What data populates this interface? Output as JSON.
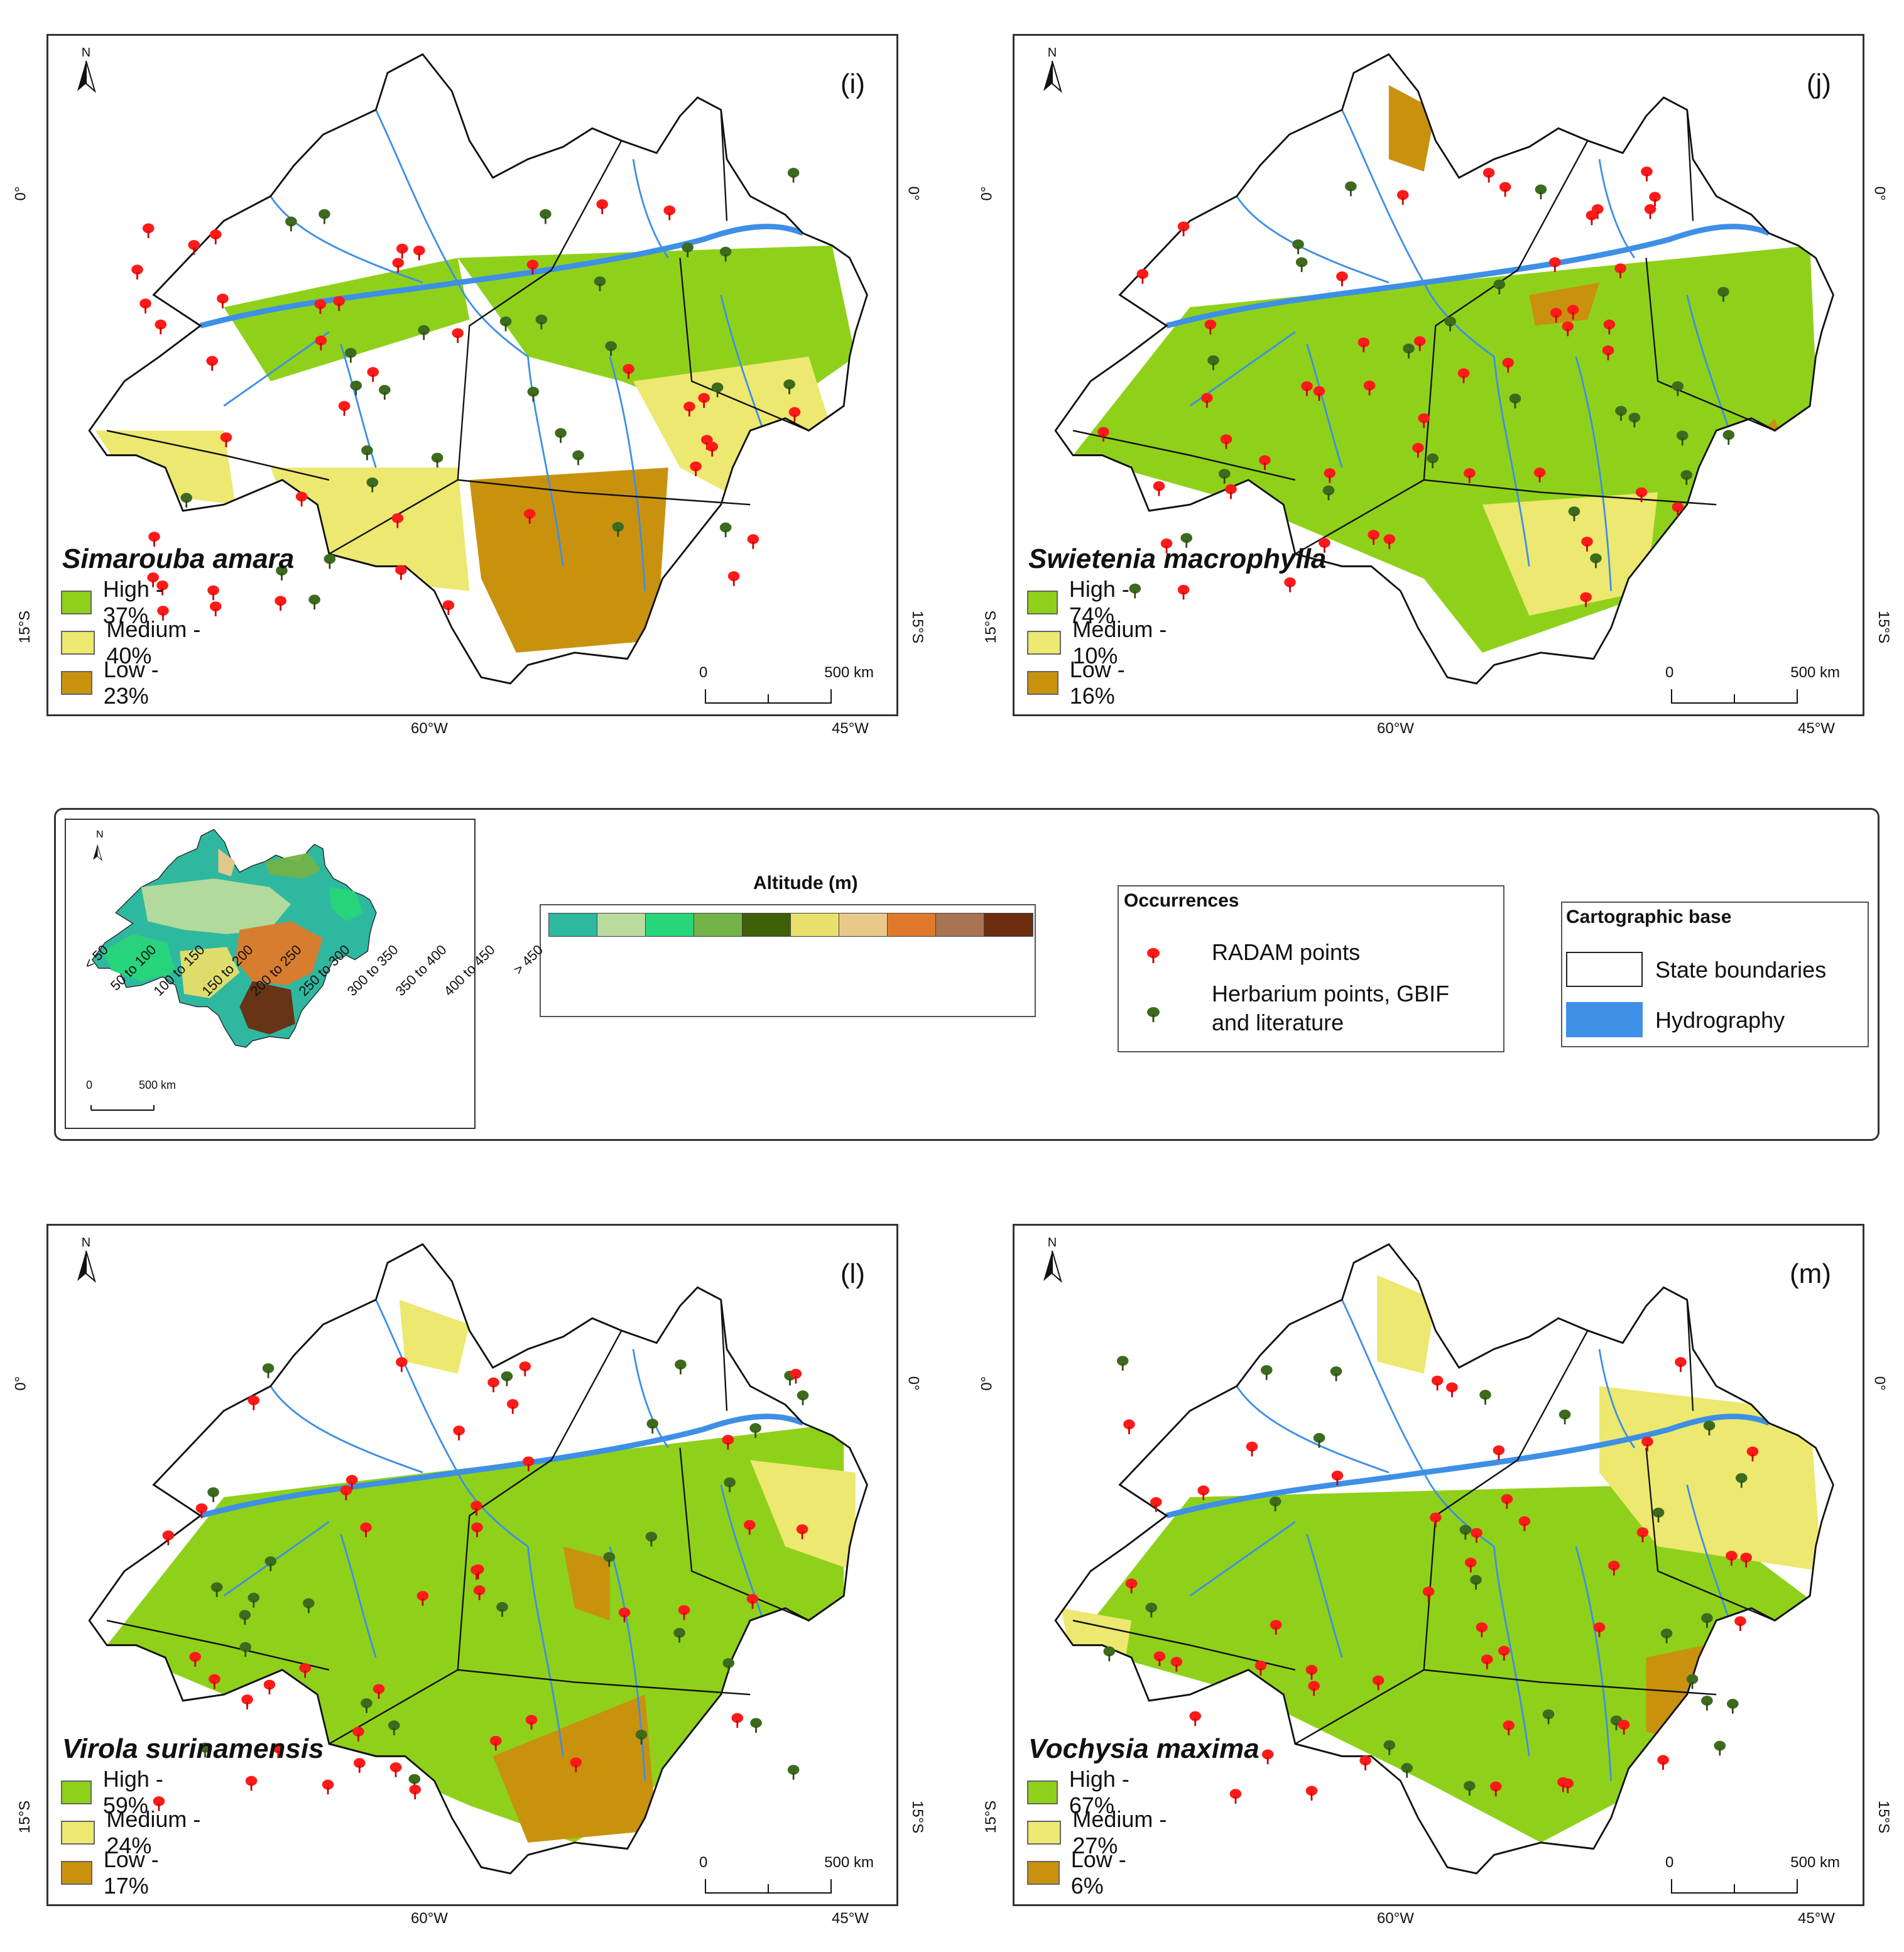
{
  "colors": {
    "high": "#8fd11a",
    "medium": "#ece870",
    "low": "#c9920e",
    "hydro": "#3e8fe6",
    "radam": "#ff1a1a",
    "herbarium": "#3d6b1e",
    "frame": "#333333"
  },
  "panels": [
    {
      "letter": "(i)",
      "species": "Simarouba amara",
      "north": "N",
      "legend": [
        {
          "label": "High - 37%",
          "class": "high"
        },
        {
          "label": "Medium - 40%",
          "class": "medium"
        },
        {
          "label": "Low - 23%",
          "class": "low"
        }
      ],
      "scale": {
        "zero": "0",
        "max": "500 km"
      },
      "ticks": {
        "left_top": "0°",
        "left_bottom": "15°S",
        "right_top": "0°",
        "right_bottom": "15°S",
        "bottom_left": "60°W",
        "bottom_right": "45°W"
      }
    },
    {
      "letter": "(j)",
      "species": "Swietenia macrophylla",
      "north": "N",
      "legend": [
        {
          "label": "High - 74%",
          "class": "high"
        },
        {
          "label": "Medium - 10%",
          "class": "medium"
        },
        {
          "label": "Low - 16%",
          "class": "low"
        }
      ],
      "scale": {
        "zero": "0",
        "max": "500 km"
      },
      "ticks": {
        "left_top": "0°",
        "left_bottom": "15°S",
        "right_top": "0°",
        "right_bottom": "15°S",
        "bottom_left": "60°W",
        "bottom_right": "45°W"
      }
    },
    {
      "letter": "(l)",
      "species": "Virola surinamensis",
      "north": "N",
      "legend": [
        {
          "label": "High - 59%",
          "class": "high"
        },
        {
          "label": "Medium - 24%",
          "class": "medium"
        },
        {
          "label": "Low - 17%",
          "class": "low"
        }
      ],
      "scale": {
        "zero": "0",
        "max": "500 km"
      },
      "ticks": {
        "left_top": "0°",
        "left_bottom": "15°S",
        "right_top": "0°",
        "right_bottom": "15°S",
        "bottom_left": "60°W",
        "bottom_right": "45°W"
      }
    },
    {
      "letter": "(m)",
      "species": "Vochysia maxima",
      "north": "N",
      "legend": [
        {
          "label": "High - 67%",
          "class": "high"
        },
        {
          "label": "Medium - 27%",
          "class": "medium"
        },
        {
          "label": "Low - 6%",
          "class": "low"
        }
      ],
      "scale": {
        "zero": "0",
        "max": "500 km"
      },
      "ticks": {
        "left_top": "0°",
        "left_bottom": "15°S",
        "right_top": "0°",
        "right_bottom": "15°S",
        "bottom_left": "60°W",
        "bottom_right": "45°W"
      }
    }
  ],
  "legend_box": {
    "inset": {
      "north": "N",
      "scale_zero": "0",
      "scale_max": "500 km"
    },
    "altitude": {
      "title": "Altitude (m)",
      "classes": [
        {
          "label": "< 50",
          "color": "#2fb8a0"
        },
        {
          "label": "50 to 100",
          "color": "#b9dc9c"
        },
        {
          "label": "100 to 150",
          "color": "#27d67a"
        },
        {
          "label": "150 to 200",
          "color": "#72b347"
        },
        {
          "label": "200 to 250",
          "color": "#3f5f08"
        },
        {
          "label": "250 to 300",
          "color": "#e8e06a"
        },
        {
          "label": "300 to 350",
          "color": "#e9c98a"
        },
        {
          "label": "350 to 400",
          "color": "#e07a2a"
        },
        {
          "label": "400 to 450",
          "color": "#a87452"
        },
        {
          "label": "> 450",
          "color": "#6b2d0e"
        }
      ]
    },
    "occurrences": {
      "title": "Occurrences",
      "radam": "RADAM points",
      "herbarium_1": "Herbarium points, GBIF",
      "herbarium_2": "and literature"
    },
    "cartographic": {
      "title": "Cartographic base",
      "states": "State boundaries",
      "hydro": "Hydrography"
    }
  }
}
